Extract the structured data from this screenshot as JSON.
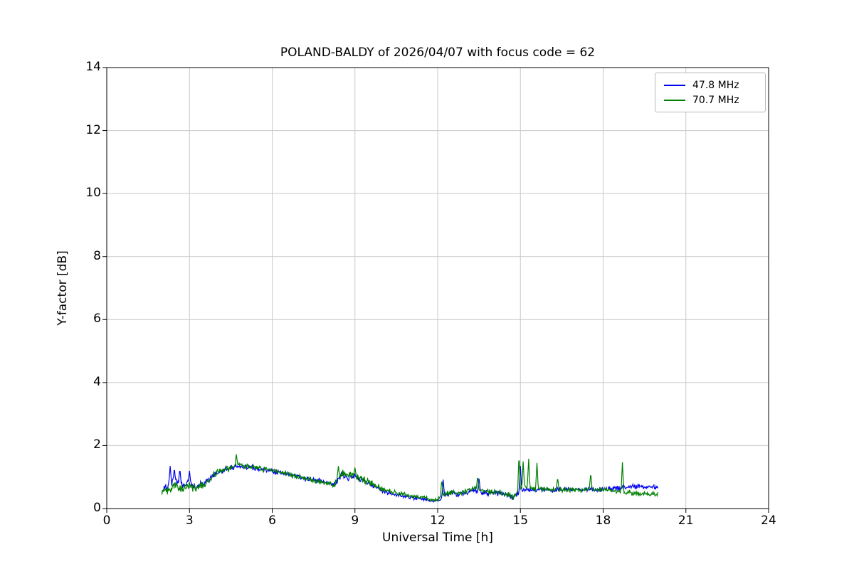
{
  "chart_data": {
    "type": "line",
    "title": "POLAND-BALDY of 2026/04/07 with focus code = 62",
    "xlabel": "Universal Time [h]",
    "ylabel": "Y-factor [dB]",
    "xlim": [
      0,
      24
    ],
    "ylim": [
      0,
      14
    ],
    "xticks": [
      0,
      3,
      6,
      9,
      12,
      15,
      18,
      21,
      24
    ],
    "yticks": [
      0,
      2,
      4,
      6,
      8,
      10,
      12,
      14
    ],
    "grid": true,
    "grid_color": "#c9c9c9",
    "axes_color": "#000000",
    "legend_position": "upper right",
    "series": [
      {
        "name": "47.8 MHz",
        "color": "#0000ee",
        "x_start": 2.0,
        "x_step": 0.25,
        "x_end": 20.0,
        "y": [
          0.6,
          0.8,
          0.85,
          0.75,
          0.8,
          0.7,
          0.8,
          0.95,
          1.12,
          1.22,
          1.28,
          1.32,
          1.32,
          1.3,
          1.28,
          1.22,
          1.18,
          1.15,
          1.1,
          1.05,
          1.0,
          0.95,
          0.92,
          0.88,
          0.82,
          0.75,
          1.05,
          1.0,
          1.0,
          0.9,
          0.8,
          0.68,
          0.58,
          0.5,
          0.45,
          0.4,
          0.35,
          0.33,
          0.3,
          0.25,
          0.25,
          0.42,
          0.5,
          0.45,
          0.5,
          0.55,
          0.55,
          0.5,
          0.48,
          0.48,
          0.42,
          0.35,
          0.55,
          0.6,
          0.58,
          0.6,
          0.6,
          0.58,
          0.6,
          0.6,
          0.62,
          0.6,
          0.62,
          0.6,
          0.62,
          0.62,
          0.65,
          0.68,
          0.7,
          0.7,
          0.68,
          0.7,
          0.65
        ],
        "noise_x": [
          2.0,
          3.5,
          3.8,
          8.2,
          8.4,
          9.6,
          10.5,
          12.0,
          12.3,
          20.0
        ],
        "noise_amp": [
          0.2,
          0.18,
          0.11,
          0.09,
          0.13,
          0.12,
          0.07,
          0.06,
          0.1,
          0.09
        ],
        "spikes": [
          [
            2.3,
            1.35
          ],
          [
            2.45,
            1.3
          ],
          [
            2.65,
            1.28
          ],
          [
            3.0,
            1.2
          ],
          [
            12.2,
            0.92
          ],
          [
            13.5,
            0.95
          ],
          [
            15.0,
            1.35
          ]
        ]
      },
      {
        "name": "70.7 MHz",
        "color": "#008000",
        "x_start": 2.0,
        "x_step": 0.25,
        "x_end": 20.0,
        "y": [
          0.55,
          0.6,
          0.75,
          0.65,
          0.7,
          0.65,
          0.75,
          0.95,
          1.15,
          1.25,
          1.3,
          1.38,
          1.35,
          1.32,
          1.3,
          1.25,
          1.18,
          1.15,
          1.12,
          1.05,
          1.0,
          0.95,
          0.9,
          0.85,
          0.8,
          0.72,
          1.1,
          1.05,
          1.05,
          0.95,
          0.85,
          0.72,
          0.62,
          0.55,
          0.5,
          0.45,
          0.4,
          0.38,
          0.35,
          0.28,
          0.28,
          0.45,
          0.55,
          0.5,
          0.55,
          0.62,
          0.6,
          0.55,
          0.5,
          0.52,
          0.45,
          0.35,
          0.6,
          0.7,
          0.6,
          0.62,
          0.6,
          0.58,
          0.6,
          0.58,
          0.6,
          0.58,
          0.62,
          0.58,
          0.6,
          0.58,
          0.55,
          0.52,
          0.5,
          0.48,
          0.48,
          0.45,
          0.45
        ],
        "noise_x": [
          2.0,
          3.5,
          3.8,
          8.2,
          8.4,
          9.6,
          10.2,
          10.8,
          12.0,
          12.3,
          13.8,
          14.9,
          15.6,
          20.0
        ],
        "noise_amp": [
          0.18,
          0.16,
          0.12,
          0.1,
          0.16,
          0.14,
          0.09,
          0.07,
          0.07,
          0.12,
          0.1,
          0.12,
          0.1,
          0.1
        ],
        "spikes": [
          [
            4.7,
            1.72
          ],
          [
            8.4,
            1.35
          ],
          [
            9.0,
            1.3
          ],
          [
            12.15,
            0.95
          ],
          [
            13.45,
            1.05
          ],
          [
            14.95,
            1.75
          ],
          [
            15.1,
            1.5
          ],
          [
            15.3,
            1.58
          ],
          [
            15.6,
            1.45
          ],
          [
            16.35,
            1.0
          ],
          [
            17.55,
            1.15
          ],
          [
            18.7,
            1.47
          ]
        ]
      }
    ]
  }
}
